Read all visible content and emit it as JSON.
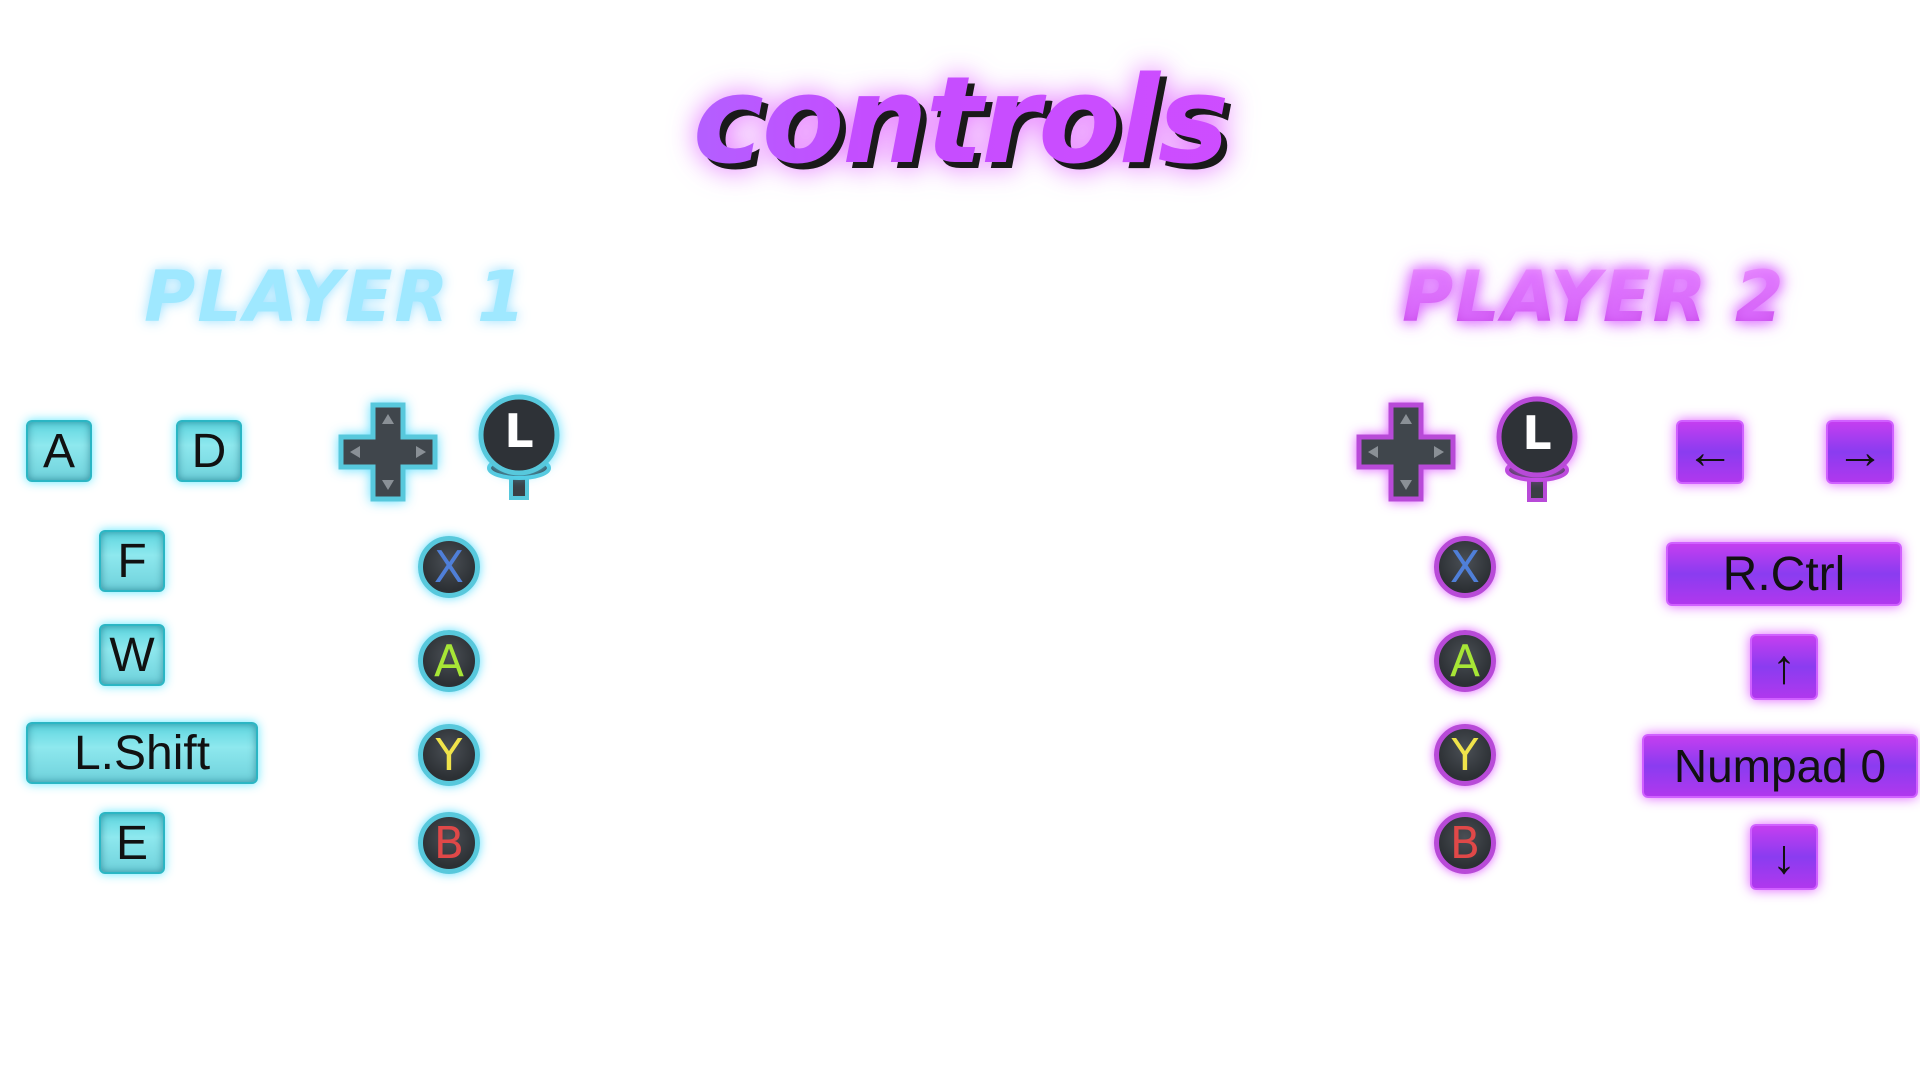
{
  "title": "controls",
  "player1": {
    "title": "PLAYER 1",
    "keys": {
      "left": "A",
      "right": "D",
      "action1": "F",
      "action2": "W",
      "action3": "L.Shift",
      "action4": "E"
    },
    "stick_label": "L",
    "buttons": [
      "X",
      "A",
      "Y",
      "B"
    ],
    "accent_color": "#57c8dc"
  },
  "player2": {
    "title": "PLAYER 2",
    "keys": {
      "left": "←",
      "right": "→",
      "action1": "R.Ctrl",
      "action2": "↑",
      "action3": "Numpad 0",
      "action4": "↓"
    },
    "stick_label": "L",
    "buttons": [
      "X",
      "A",
      "Y",
      "B"
    ],
    "accent_color": "#b84ad8"
  },
  "icons": {
    "dpad": "dpad-icon",
    "stick": "left-stick-icon"
  }
}
